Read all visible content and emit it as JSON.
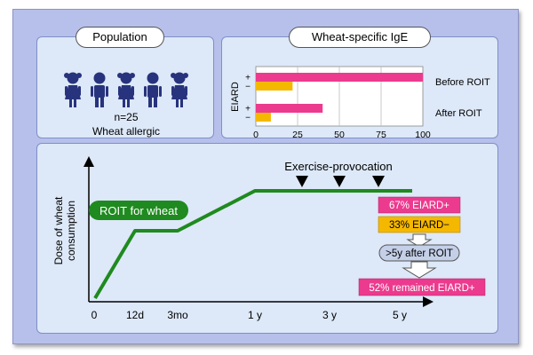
{
  "colors": {
    "frame_bg": "#b7c0ea",
    "panel_bg": "#dde8f8",
    "person": "#28337d",
    "bar_pink": "#ec3a8e",
    "bar_yellow": "#f5b800",
    "line_green": "#1f8a1f",
    "arrow_fill": "#ffffff"
  },
  "population": {
    "title": "Population",
    "icons": [
      "girl-icon",
      "boy-icon",
      "girl-icon",
      "boy-icon",
      "girl-icon"
    ],
    "n_label": "n=25",
    "description": "Wheat allergic"
  },
  "ige": {
    "title": "Wheat-specific IgE",
    "y_axis_label": "EIARD",
    "groups": [
      {
        "name": "Before ROIT",
        "plus_sign": "+",
        "minus_sign": "−",
        "plus_value": 100,
        "minus_value": 22
      },
      {
        "name": "After ROIT",
        "plus_sign": "+",
        "minus_sign": "−",
        "plus_value": 40,
        "minus_value": 9
      }
    ],
    "x_ticks": [
      "0",
      "25",
      "50",
      "75",
      "100"
    ]
  },
  "chart_data": {
    "type": "bar",
    "categories": [
      "Before ROIT",
      "After ROIT"
    ],
    "series": [
      {
        "name": "+",
        "values": [
          100,
          40
        ]
      },
      {
        "name": "−",
        "values": [
          22,
          9
        ]
      }
    ],
    "title": "Wheat-specific IgE",
    "xlabel": "",
    "ylabel": "EIARD",
    "xlim": [
      0,
      100
    ],
    "orientation": "horizontal",
    "grid": true
  },
  "timeline": {
    "y_axis_label_line1": "Dose of wheat",
    "y_axis_label_line2": "consumption",
    "roit_label": "ROIT for wheat",
    "provocation_label": "Exercise-provocation",
    "x_labels": [
      "0",
      "12d",
      "3mo",
      "1 y",
      "3 y",
      "5 y"
    ],
    "eiard_plus": "67% EIARD+",
    "eiard_minus": "33% EIARD−",
    "after_label": ">5y after ROIT",
    "remained": "52% remained EIARD+"
  }
}
